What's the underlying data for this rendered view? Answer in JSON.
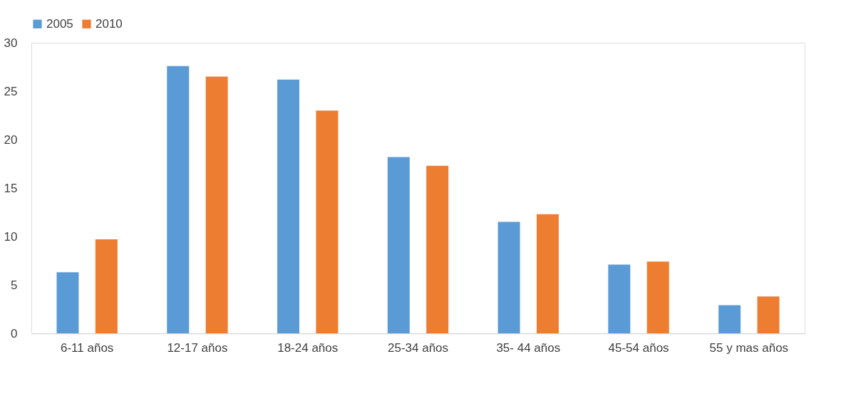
{
  "chart_data": {
    "type": "bar",
    "categories": [
      "6-11 años",
      "12-17 años",
      "18-24 años",
      "25-34 años",
      "35- 44 años",
      "45-54 años",
      "55 y mas años"
    ],
    "series": [
      {
        "name": "2005",
        "color": "#5b9bd5",
        "values": [
          6.3,
          27.6,
          26.2,
          18.2,
          11.5,
          7.1,
          2.9
        ]
      },
      {
        "name": "2010",
        "color": "#ed7d31",
        "values": [
          9.7,
          26.5,
          23.0,
          17.3,
          12.3,
          7.4,
          3.8
        ]
      }
    ],
    "ylim": [
      0,
      30
    ],
    "yticks": [
      0,
      5,
      10,
      15,
      20,
      25,
      30
    ],
    "grid": false,
    "legend": "top"
  }
}
